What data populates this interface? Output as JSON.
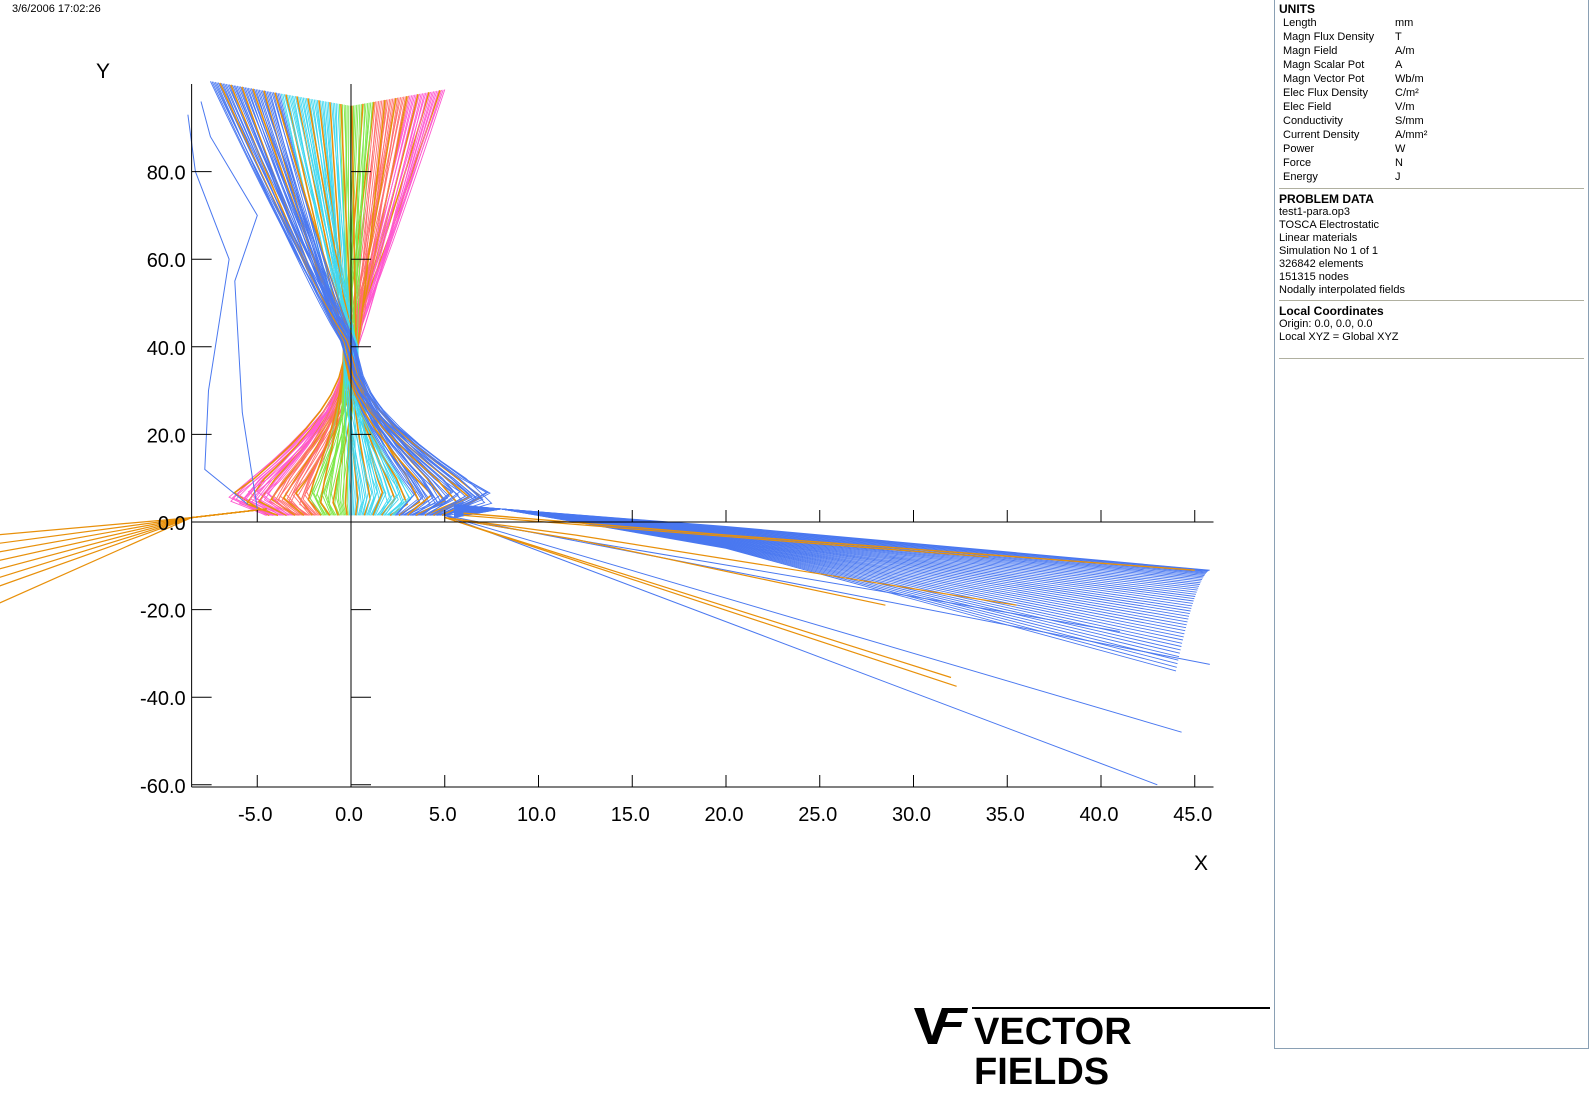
{
  "timestamp": "3/6/2006 17:02:26",
  "plot": {
    "y_axis_label": "Y",
    "x_axis_label": "X",
    "x_ticks": [
      "-5.0",
      "0.0",
      "5.0",
      "10.0",
      "15.0",
      "20.0",
      "25.0",
      "30.0",
      "35.0",
      "40.0",
      "45.0"
    ],
    "y_ticks": [
      "80.0",
      "60.0",
      "40.0",
      "20.0",
      "0.0",
      "-20.0",
      "-40.0",
      "-60.0"
    ],
    "colors": {
      "orange": "#e8900a",
      "blue": "#4a78f0",
      "cyan": "#40d8f0",
      "green": "#7ee84a",
      "magenta": "#ff5ad0",
      "salmon": "#ff7070"
    }
  },
  "info": {
    "units": {
      "title": "UNITS",
      "rows": [
        {
          "name": "Length",
          "unit": "mm"
        },
        {
          "name": "Magn Flux Density",
          "unit": "T"
        },
        {
          "name": "Magn Field",
          "unit": "A/m"
        },
        {
          "name": "Magn Scalar Pot",
          "unit": "A"
        },
        {
          "name": "Magn Vector Pot",
          "unit": "Wb/m"
        },
        {
          "name": "Elec Flux Density",
          "unit": "C/m²"
        },
        {
          "name": "Elec Field",
          "unit": "V/m"
        },
        {
          "name": "Conductivity",
          "unit": "S/mm"
        },
        {
          "name": "Current Density",
          "unit": "A/mm²"
        },
        {
          "name": "Power",
          "unit": "W"
        },
        {
          "name": "Force",
          "unit": "N"
        },
        {
          "name": "Energy",
          "unit": "J"
        }
      ]
    },
    "problem": {
      "title": "PROBLEM DATA",
      "lines": [
        "test1-para.op3",
        "TOSCA Electrostatic",
        "Linear materials",
        "Simulation No 1 of 1",
        "326842 elements",
        "151315 nodes",
        "Nodally interpolated fields"
      ]
    },
    "coords": {
      "title": "Local Coordinates",
      "lines": [
        "Origin: 0.0, 0.0, 0.0",
        "Local XYZ = Global XYZ"
      ]
    }
  },
  "logo": {
    "mark": "VF",
    "text": "VECTOR FIELDS"
  }
}
